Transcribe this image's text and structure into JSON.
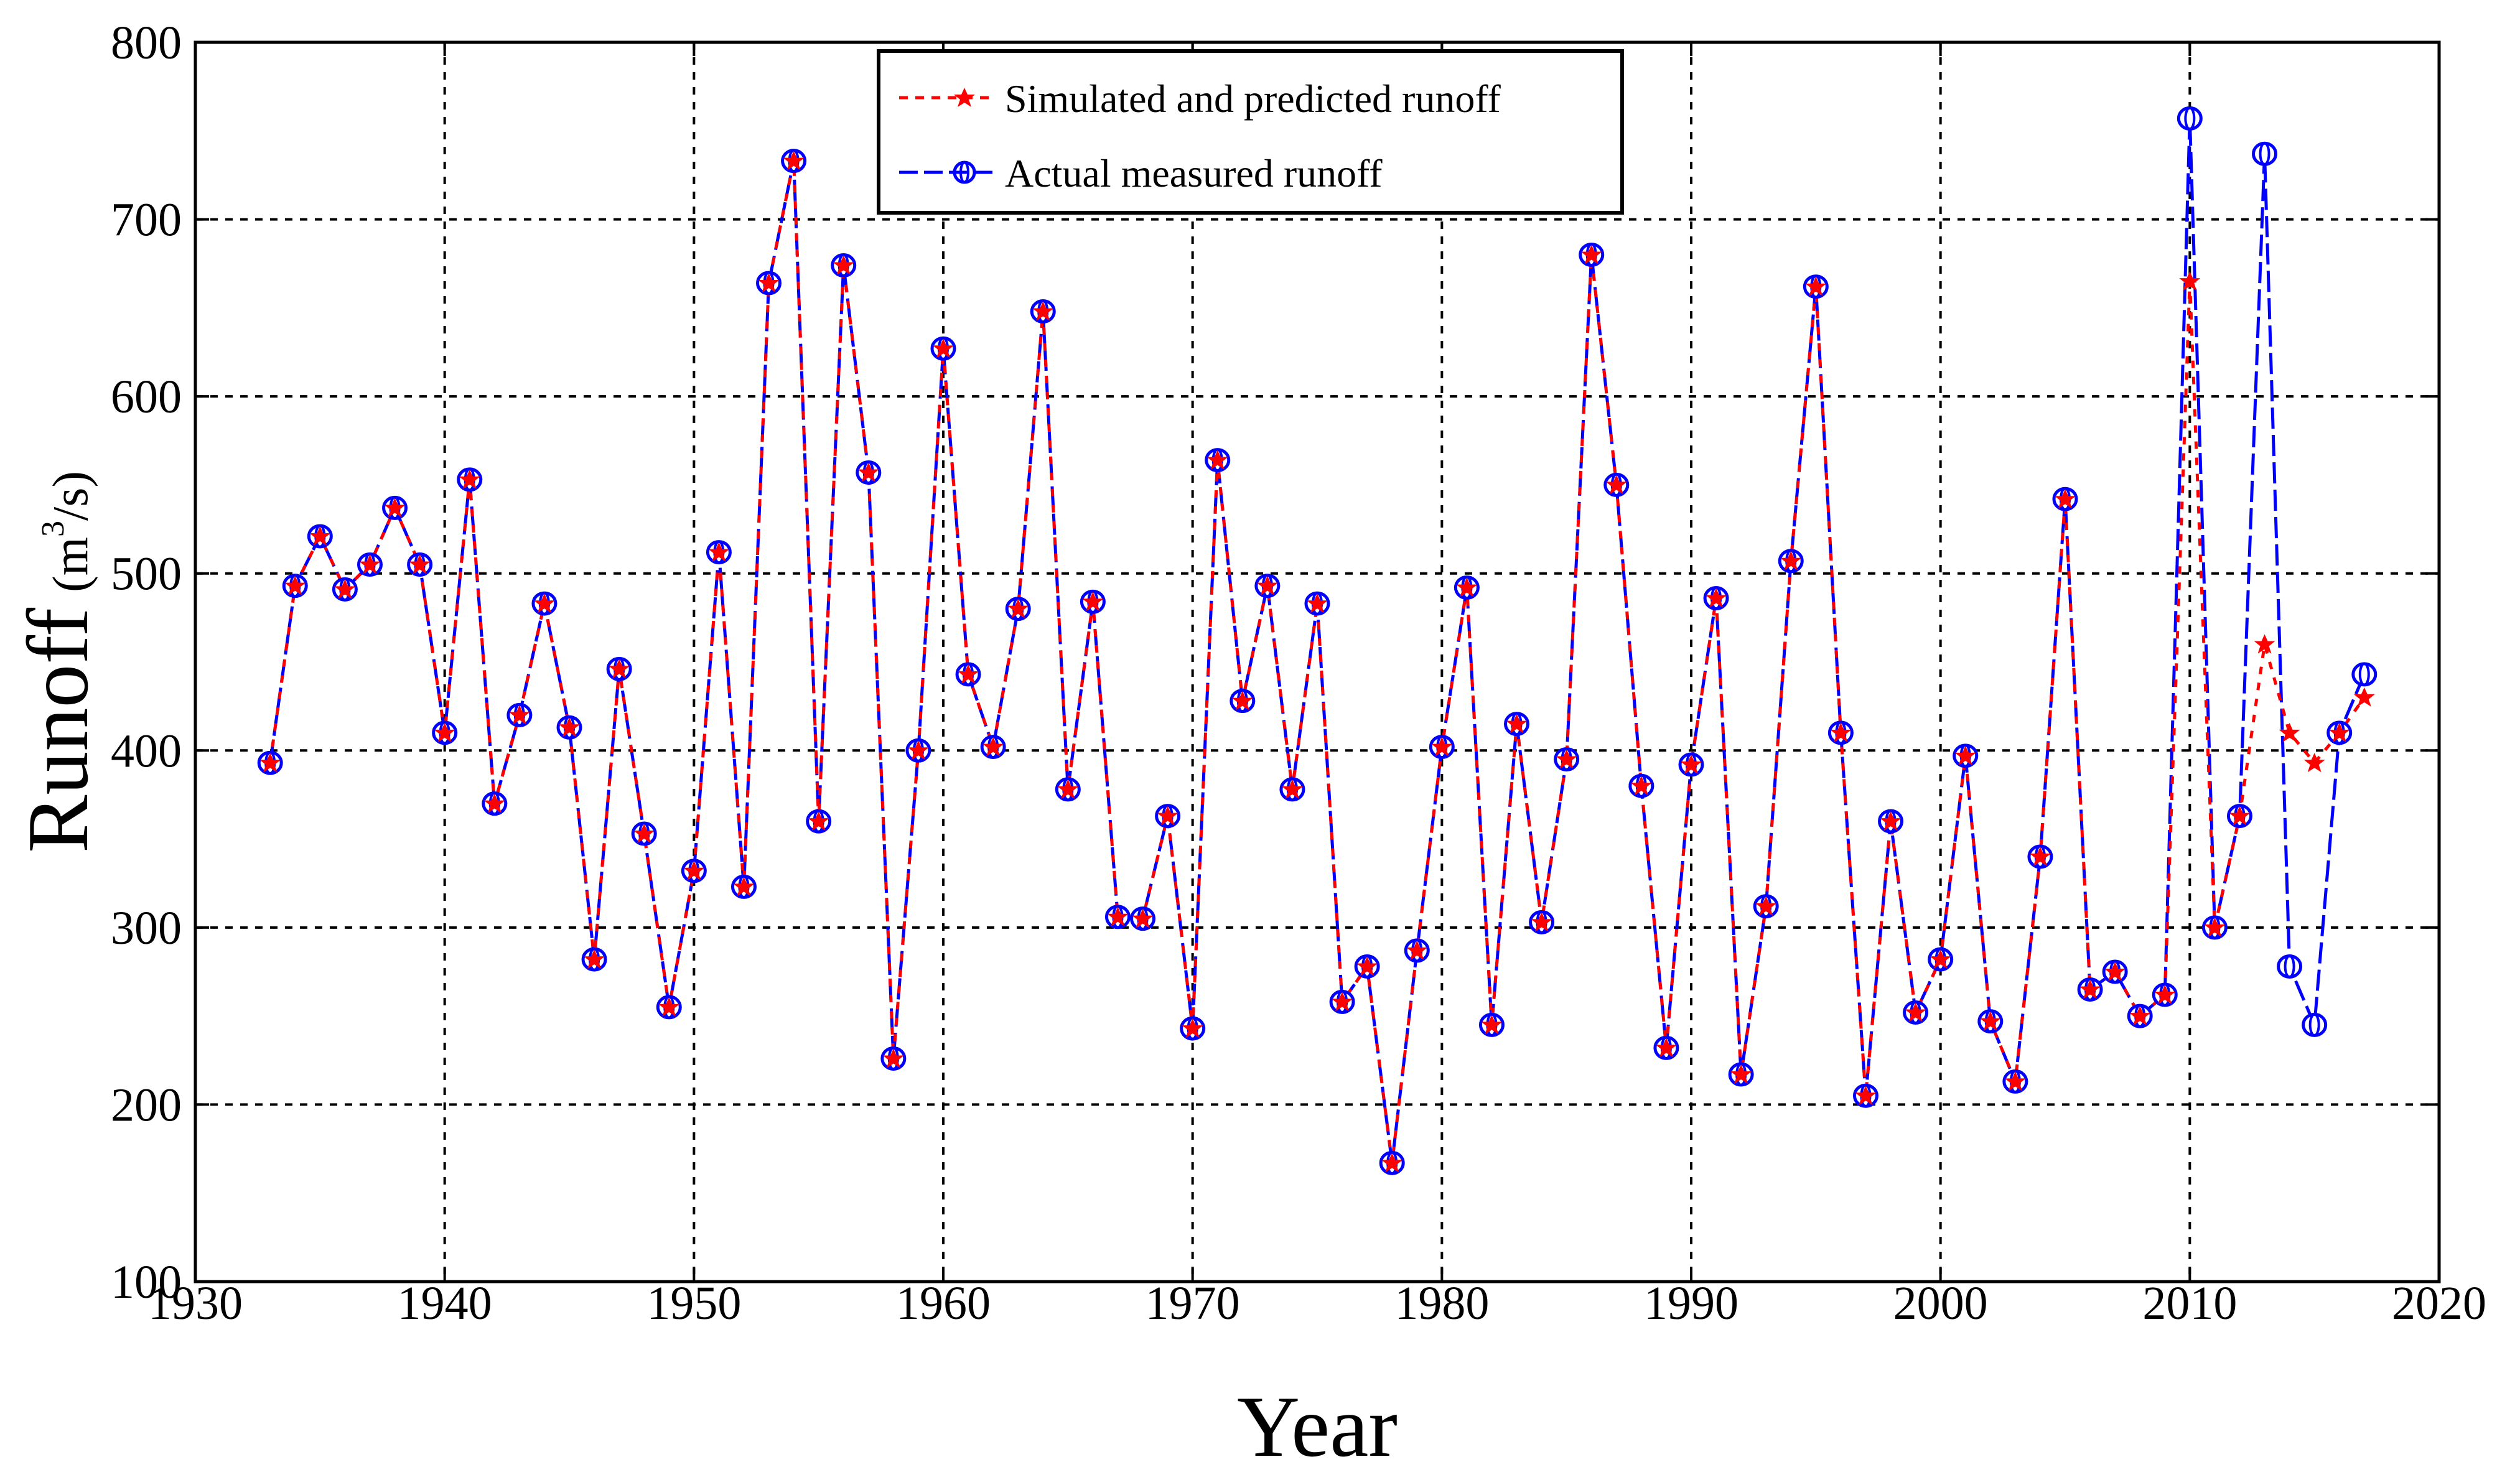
{
  "chart_data": {
    "type": "line",
    "title": "",
    "xlabel": "Year",
    "ylabel": "Runoff",
    "ylabel_unit_prefix": "(m",
    "ylabel_unit_sup": "3",
    "ylabel_unit_suffix": "/s)",
    "xlim": [
      1930,
      2020
    ],
    "ylim": [
      100,
      800
    ],
    "xticks": [
      1930,
      1940,
      1950,
      1960,
      1970,
      1980,
      1990,
      2000,
      2010,
      2020
    ],
    "yticks": [
      100,
      200,
      300,
      400,
      500,
      600,
      700,
      800
    ],
    "xtick_labels": [
      "1930",
      "1940",
      "1950",
      "1960",
      "1970",
      "1980",
      "1990",
      "2000",
      "2010",
      "2020"
    ],
    "ytick_labels": [
      "100",
      "200",
      "300",
      "400",
      "500",
      "600",
      "700",
      "800"
    ],
    "grid": true,
    "legend_position": "top-center",
    "colors": {
      "simulated": "#ff0000",
      "actual": "#0000ff",
      "grid": "#000000"
    },
    "series": [
      {
        "name": "Simulated and predicted runoff",
        "style": "dashed-red-star",
        "x": [
          1933,
          1934,
          1935,
          1936,
          1937,
          1938,
          1939,
          1940,
          1941,
          1942,
          1943,
          1944,
          1945,
          1946,
          1947,
          1948,
          1949,
          1950,
          1951,
          1952,
          1953,
          1954,
          1955,
          1956,
          1957,
          1958,
          1959,
          1960,
          1961,
          1962,
          1963,
          1964,
          1965,
          1966,
          1967,
          1968,
          1969,
          1970,
          1971,
          1972,
          1973,
          1974,
          1975,
          1976,
          1977,
          1978,
          1979,
          1980,
          1981,
          1982,
          1983,
          1984,
          1985,
          1986,
          1987,
          1988,
          1989,
          1990,
          1991,
          1992,
          1993,
          1994,
          1995,
          1996,
          1997,
          1998,
          1999,
          2000,
          2001,
          2002,
          2003,
          2004,
          2005,
          2006,
          2007,
          2008,
          2009,
          2010,
          2011,
          2012,
          2013,
          2014,
          2015,
          2016,
          2017
        ],
        "values": [
          393,
          493,
          521,
          491,
          505,
          537,
          505,
          410,
          553,
          370,
          420,
          483,
          413,
          282,
          446,
          353,
          255,
          332,
          512,
          323,
          664,
          733,
          360,
          674,
          557,
          226,
          400,
          627,
          443,
          402,
          480,
          648,
          378,
          484,
          306,
          305,
          363,
          243,
          564,
          428,
          493,
          378,
          483,
          258,
          278,
          167,
          287,
          402,
          492,
          245,
          415,
          303,
          395,
          680,
          550,
          380,
          232,
          392,
          486,
          217,
          312,
          507,
          662,
          410,
          205,
          360,
          252,
          282,
          397,
          247,
          213,
          340,
          542,
          265,
          275,
          250,
          262,
          665,
          300,
          363,
          460,
          410,
          393,
          410,
          430
        ]
      },
      {
        "name": "Actual measured runoff",
        "style": "dashed-blue-circle",
        "x": [
          1933,
          1934,
          1935,
          1936,
          1937,
          1938,
          1939,
          1940,
          1941,
          1942,
          1943,
          1944,
          1945,
          1946,
          1947,
          1948,
          1949,
          1950,
          1951,
          1952,
          1953,
          1954,
          1955,
          1956,
          1957,
          1958,
          1959,
          1960,
          1961,
          1962,
          1963,
          1964,
          1965,
          1966,
          1967,
          1968,
          1969,
          1970,
          1971,
          1972,
          1973,
          1974,
          1975,
          1976,
          1977,
          1978,
          1979,
          1980,
          1981,
          1982,
          1983,
          1984,
          1985,
          1986,
          1987,
          1988,
          1989,
          1990,
          1991,
          1992,
          1993,
          1994,
          1995,
          1996,
          1997,
          1998,
          1999,
          2000,
          2001,
          2002,
          2003,
          2004,
          2005,
          2006,
          2007,
          2008,
          2009,
          2010,
          2011,
          2012,
          2013,
          2014,
          2015,
          2016,
          2017
        ],
        "values": [
          393,
          493,
          521,
          491,
          505,
          537,
          505,
          410,
          553,
          370,
          420,
          483,
          413,
          282,
          446,
          353,
          255,
          332,
          512,
          323,
          664,
          733,
          360,
          674,
          557,
          226,
          400,
          627,
          443,
          402,
          480,
          648,
          378,
          484,
          306,
          305,
          363,
          243,
          564,
          428,
          493,
          378,
          483,
          258,
          278,
          167,
          287,
          402,
          492,
          245,
          415,
          303,
          395,
          680,
          550,
          380,
          232,
          392,
          486,
          217,
          312,
          507,
          662,
          410,
          205,
          360,
          252,
          282,
          397,
          247,
          213,
          340,
          542,
          265,
          275,
          250,
          262,
          757,
          300,
          363,
          737,
          278,
          245,
          410,
          443
        ]
      }
    ]
  }
}
